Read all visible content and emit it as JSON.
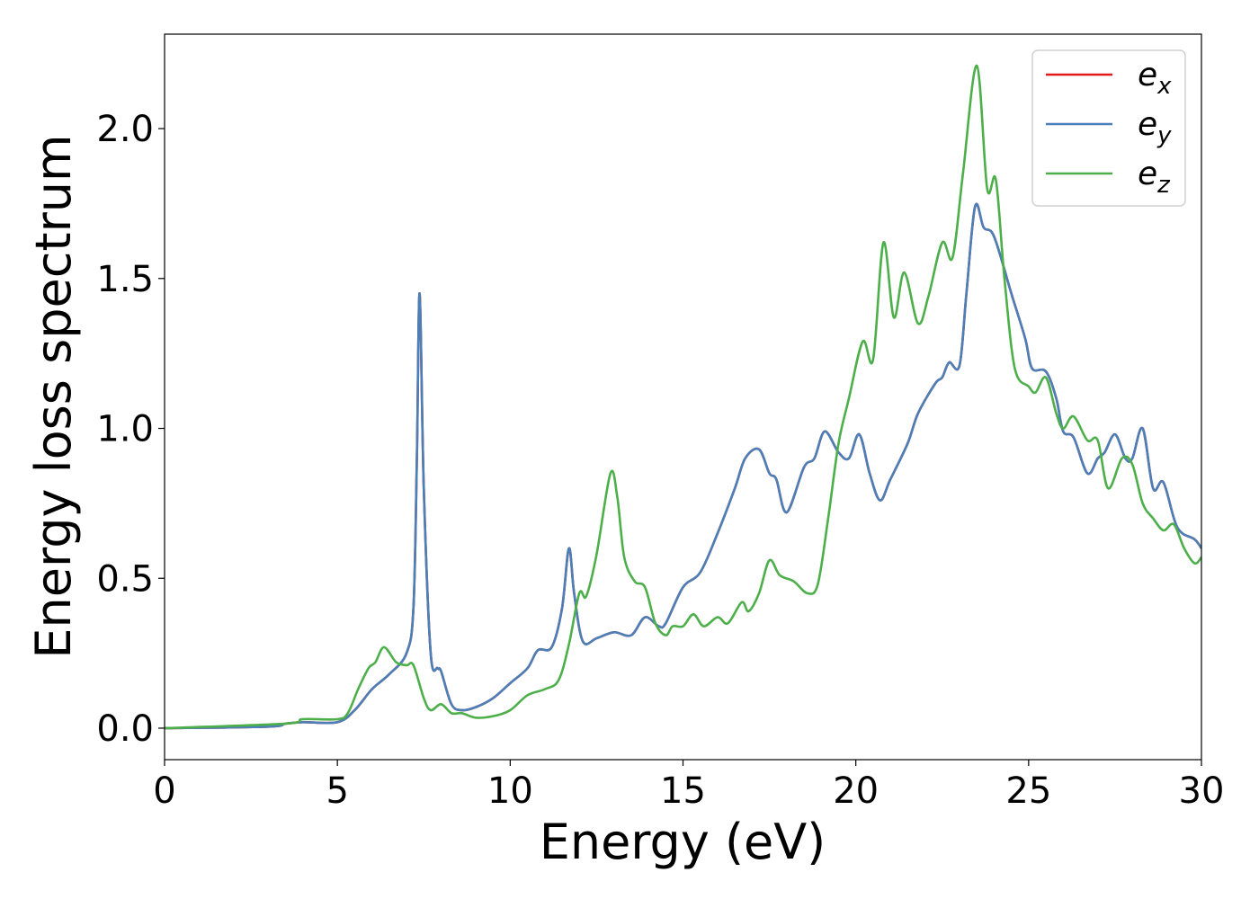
{
  "chart_data": {
    "type": "line",
    "title": "",
    "xlabel": "Energy (eV)",
    "ylabel": "Energy loss spectrum",
    "xlim": [
      0,
      30
    ],
    "ylim": [
      -0.105,
      2.315
    ],
    "xticks": [
      0,
      5,
      10,
      15,
      20,
      25,
      30
    ],
    "xtick_labels": [
      "0",
      "5",
      "10",
      "15",
      "20",
      "25",
      "30"
    ],
    "yticks": [
      0.0,
      0.5,
      1.0,
      1.5,
      2.0
    ],
    "ytick_labels": [
      "0.0",
      "0.5",
      "1.0",
      "1.5",
      "2.0"
    ],
    "grid": false,
    "legend_position": "top-right",
    "series": [
      {
        "name": "e_x",
        "label_main": "e",
        "label_sub": "x",
        "color": "#e41a1c",
        "x": [
          0,
          3,
          3.5,
          4,
          5,
          5.5,
          6,
          6.5,
          7,
          7.2,
          7.3,
          7.38,
          7.5,
          7.7,
          7.9,
          8.0,
          8.3,
          8.6,
          9,
          9.5,
          10,
          10.5,
          10.8,
          11.2,
          11.5,
          11.7,
          11.85,
          12.1,
          12.5,
          13,
          13.5,
          13.9,
          14.3,
          14.5,
          15,
          15.5,
          16,
          16.5,
          16.8,
          17.2,
          17.5,
          17.7,
          18,
          18.5,
          18.8,
          19.1,
          19.5,
          19.8,
          20.1,
          20.4,
          20.7,
          21,
          21.5,
          21.8,
          22.3,
          22.5,
          22.7,
          23,
          23.2,
          23.45,
          23.7,
          24,
          24.5,
          24.9,
          25.1,
          25.5,
          25.8,
          26,
          26.3,
          26.7,
          27,
          27.2,
          27.5,
          27.8,
          28,
          28.3,
          28.6,
          28.9,
          29.3,
          29.8,
          30
        ],
        "y": [
          0,
          0.005,
          0.015,
          0.02,
          0.02,
          0.06,
          0.13,
          0.18,
          0.25,
          0.4,
          0.9,
          1.45,
          0.8,
          0.25,
          0.2,
          0.19,
          0.08,
          0.06,
          0.07,
          0.1,
          0.15,
          0.2,
          0.26,
          0.27,
          0.4,
          0.6,
          0.45,
          0.29,
          0.3,
          0.32,
          0.31,
          0.37,
          0.34,
          0.35,
          0.47,
          0.52,
          0.65,
          0.8,
          0.9,
          0.93,
          0.85,
          0.83,
          0.72,
          0.87,
          0.9,
          0.99,
          0.92,
          0.9,
          0.98,
          0.85,
          0.76,
          0.83,
          0.95,
          1.05,
          1.15,
          1.17,
          1.22,
          1.21,
          1.45,
          1.74,
          1.67,
          1.64,
          1.45,
          1.3,
          1.2,
          1.19,
          1.1,
          0.99,
          0.97,
          0.85,
          0.9,
          0.92,
          0.98,
          0.9,
          0.9,
          1.0,
          0.8,
          0.82,
          0.67,
          0.63,
          0.6
        ]
      },
      {
        "name": "e_y",
        "label_main": "e",
        "label_sub": "y",
        "color": "#4a7fb8",
        "x": [
          0,
          3,
          3.5,
          4,
          5,
          5.5,
          6,
          6.5,
          7,
          7.2,
          7.3,
          7.38,
          7.5,
          7.7,
          7.9,
          8.0,
          8.3,
          8.6,
          9,
          9.5,
          10,
          10.5,
          10.8,
          11.2,
          11.5,
          11.7,
          11.85,
          12.1,
          12.5,
          13,
          13.5,
          13.9,
          14.3,
          14.5,
          15,
          15.5,
          16,
          16.5,
          16.8,
          17.2,
          17.5,
          17.7,
          18,
          18.5,
          18.8,
          19.1,
          19.5,
          19.8,
          20.1,
          20.4,
          20.7,
          21,
          21.5,
          21.8,
          22.3,
          22.5,
          22.7,
          23,
          23.2,
          23.45,
          23.7,
          24,
          24.5,
          24.9,
          25.1,
          25.5,
          25.8,
          26,
          26.3,
          26.7,
          27,
          27.2,
          27.5,
          27.8,
          28,
          28.3,
          28.6,
          28.9,
          29.3,
          29.8,
          30
        ],
        "y": [
          0,
          0.005,
          0.015,
          0.02,
          0.02,
          0.06,
          0.13,
          0.18,
          0.25,
          0.4,
          0.9,
          1.45,
          0.8,
          0.25,
          0.2,
          0.19,
          0.08,
          0.06,
          0.07,
          0.1,
          0.15,
          0.2,
          0.26,
          0.27,
          0.4,
          0.6,
          0.45,
          0.29,
          0.3,
          0.32,
          0.31,
          0.37,
          0.34,
          0.35,
          0.47,
          0.52,
          0.65,
          0.8,
          0.9,
          0.93,
          0.85,
          0.83,
          0.72,
          0.87,
          0.9,
          0.99,
          0.92,
          0.9,
          0.98,
          0.85,
          0.76,
          0.83,
          0.95,
          1.05,
          1.15,
          1.17,
          1.22,
          1.21,
          1.45,
          1.74,
          1.67,
          1.64,
          1.45,
          1.3,
          1.2,
          1.19,
          1.1,
          0.99,
          0.97,
          0.85,
          0.9,
          0.92,
          0.98,
          0.9,
          0.9,
          1.0,
          0.8,
          0.82,
          0.67,
          0.63,
          0.6
        ]
      },
      {
        "name": "e_z",
        "label_main": "e",
        "label_sub": "z",
        "color": "#4daf4a",
        "x": [
          0,
          3.5,
          4,
          5,
          5.3,
          5.6,
          5.9,
          6.1,
          6.35,
          6.7,
          7,
          7.2,
          7.5,
          7.7,
          8,
          8.3,
          8.6,
          9,
          9.5,
          10,
          10.5,
          11,
          11.4,
          11.7,
          12,
          12.2,
          12.5,
          12.9,
          13.1,
          13.3,
          13.6,
          13.9,
          14.2,
          14.5,
          14.7,
          15,
          15.3,
          15.6,
          16,
          16.3,
          16.7,
          16.9,
          17.2,
          17.5,
          17.8,
          18.2,
          18.6,
          18.9,
          19.2,
          19.5,
          19.8,
          20.2,
          20.5,
          20.8,
          21.1,
          21.4,
          21.8,
          22.1,
          22.5,
          22.8,
          23.1,
          23.5,
          23.8,
          24.05,
          24.3,
          24.6,
          25,
          25.2,
          25.5,
          25.8,
          26,
          26.3,
          26.7,
          27,
          27.3,
          27.7,
          28,
          28.3,
          28.6,
          28.9,
          29.2,
          29.5,
          29.8,
          30
        ],
        "y": [
          0,
          0.015,
          0.03,
          0.03,
          0.05,
          0.13,
          0.2,
          0.22,
          0.27,
          0.22,
          0.21,
          0.21,
          0.1,
          0.06,
          0.08,
          0.05,
          0.05,
          0.035,
          0.04,
          0.06,
          0.11,
          0.13,
          0.16,
          0.28,
          0.45,
          0.44,
          0.58,
          0.85,
          0.77,
          0.57,
          0.49,
          0.47,
          0.35,
          0.31,
          0.34,
          0.34,
          0.38,
          0.34,
          0.37,
          0.35,
          0.42,
          0.39,
          0.45,
          0.56,
          0.51,
          0.49,
          0.45,
          0.48,
          0.7,
          0.95,
          1.1,
          1.29,
          1.23,
          1.62,
          1.37,
          1.52,
          1.35,
          1.44,
          1.62,
          1.57,
          1.85,
          2.21,
          1.8,
          1.83,
          1.5,
          1.2,
          1.14,
          1.12,
          1.17,
          1.05,
          1.0,
          1.04,
          0.96,
          0.96,
          0.8,
          0.9,
          0.88,
          0.75,
          0.7,
          0.66,
          0.68,
          0.6,
          0.55,
          0.57
        ]
      }
    ]
  }
}
